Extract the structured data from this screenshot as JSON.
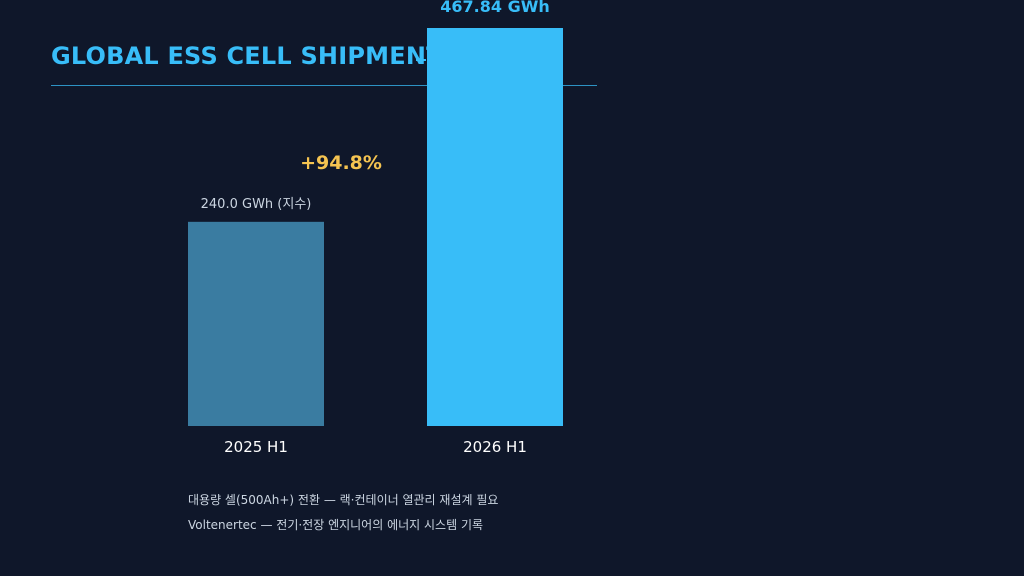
{
  "colors": {
    "background": "#0f172a",
    "accent": "#38bdf8",
    "bar_2025": "#3a7ca1",
    "bar_2026": "#38bdf8",
    "growth": "#f5c451",
    "label_muted": "#cbd5e1",
    "category": "#ffffff"
  },
  "header": {
    "title": "GLOBAL ESS CELL SHIPMENT"
  },
  "chart_data": {
    "type": "bar",
    "title": "GLOBAL ESS CELL SHIPMENT",
    "categories": [
      "2025 H1",
      "2026 H1"
    ],
    "values": [
      240.0,
      467.84
    ],
    "value_labels": [
      "240.0 GWh (지수)",
      "467.84 GWh"
    ],
    "unit": "GWh",
    "annotation": "+94.8%",
    "xlabel": "",
    "ylabel": "",
    "ylim": [
      0,
      467.84
    ],
    "grid": false,
    "legend": "none"
  },
  "footer": {
    "note_1": "대용량 셀(500Ah+) 전환 — 랙·컨테이너 열관리 재설계 필요",
    "note_2": "Voltenertec — 전기·전장 엔지니어의 에너지 시스템 기록"
  }
}
